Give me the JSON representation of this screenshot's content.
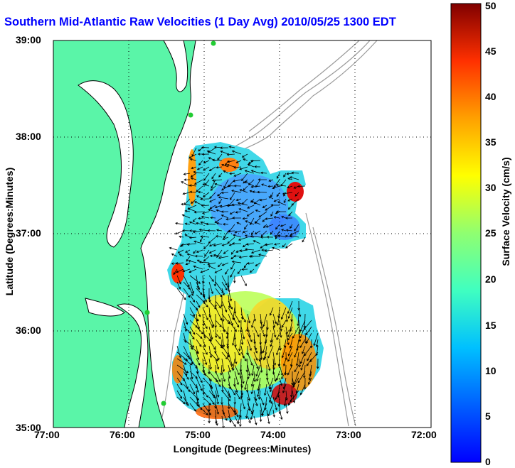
{
  "title": "Southern Mid-Atlantic Raw Velocities (1 Day Avg) 2010/05/25 1300 EDT",
  "axes": {
    "xlabel": "Longitude (Degrees:Minutes)",
    "ylabel": "Latitude (Degrees:Minutes)",
    "x_ticks": [
      "77:00",
      "76:00",
      "75:00",
      "74:00",
      "73:00",
      "72:00"
    ],
    "y_ticks": [
      "39:00",
      "38:00",
      "37:00",
      "36:00",
      "35:00"
    ],
    "grid": "dotted"
  },
  "colorbar": {
    "label": "Surface Velocity (cm/s)",
    "ticks": [
      "0",
      "5",
      "10",
      "15",
      "20",
      "25",
      "30",
      "35",
      "40",
      "45",
      "50"
    ],
    "range": [
      0,
      50
    ],
    "colormap": "jet"
  },
  "colors": {
    "land": "#5af5a8",
    "title": "#0000ff",
    "bathymetry": "#9a9a9a",
    "coast": "#000000",
    "station": "#22cc33"
  }
}
